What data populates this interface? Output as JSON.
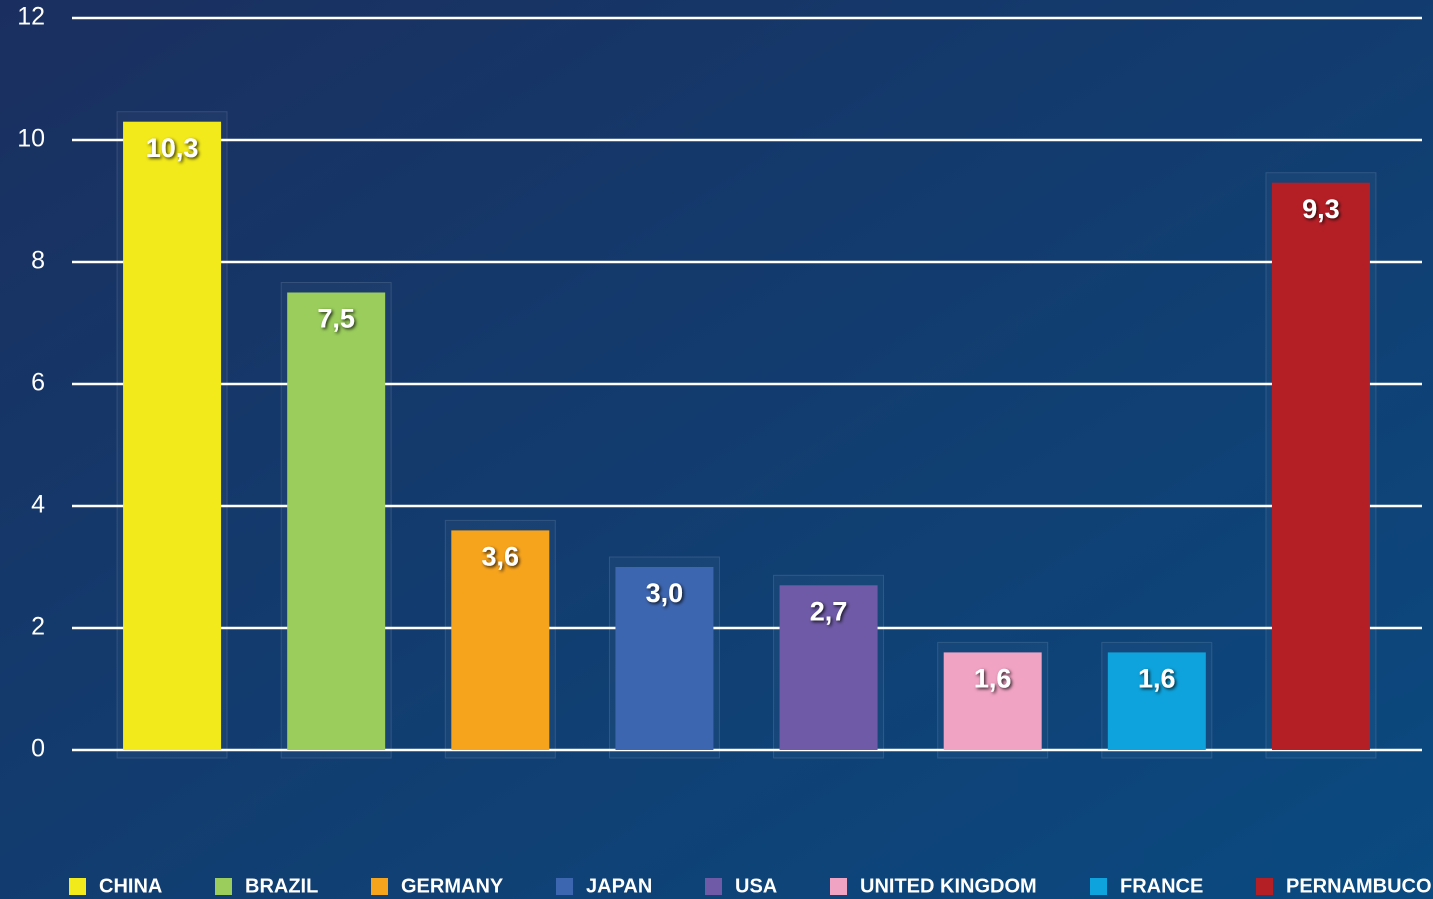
{
  "chart_data": {
    "type": "bar",
    "categories": [
      "CHINA",
      "BRAZIL",
      "GERMANY",
      "JAPAN",
      "USA",
      "UNITED KINGDOM",
      "FRANCE",
      "PERNAMBUCO"
    ],
    "values": [
      10.3,
      7.5,
      3.6,
      3.0,
      2.7,
      1.6,
      1.6,
      9.3
    ],
    "value_labels": [
      "10,3",
      "7,5",
      "3,6",
      "3,0",
      "2,7",
      "1,6",
      "1,6",
      "9,3"
    ],
    "colors": [
      "#f2ea1a",
      "#9acd5c",
      "#f7a41d",
      "#3d66b0",
      "#6e5aa6",
      "#f0a3c3",
      "#0ea3dc",
      "#b41f26"
    ],
    "ylim": [
      0,
      12
    ],
    "yticks": [
      0,
      2,
      4,
      6,
      8,
      10,
      12
    ],
    "grid": true,
    "legend": "bottom"
  }
}
